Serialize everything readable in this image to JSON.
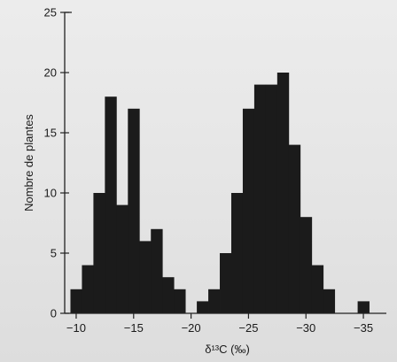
{
  "chart_data": {
    "type": "bar",
    "title": "",
    "xlabel": "δ¹³C (‰)",
    "ylabel": "Nombre de plantes",
    "x_reversed": true,
    "xlim": [
      -9,
      -37
    ],
    "ylim": [
      0,
      25
    ],
    "xticks": [
      {
        "value": -10,
        "label": "−10"
      },
      {
        "value": -15,
        "label": "−15"
      },
      {
        "value": -20,
        "label": "−20"
      },
      {
        "value": -25,
        "label": "−25"
      },
      {
        "value": -30,
        "label": "−30"
      },
      {
        "value": -35,
        "label": "−35"
      }
    ],
    "yticks": [
      {
        "value": 0,
        "label": "0"
      },
      {
        "value": 5,
        "label": "5"
      },
      {
        "value": 10,
        "label": "10"
      },
      {
        "value": 15,
        "label": "15"
      },
      {
        "value": 20,
        "label": "20"
      },
      {
        "value": 25,
        "label": "25"
      }
    ],
    "bin_width": 1,
    "bins": [
      {
        "x": -10,
        "count": 2
      },
      {
        "x": -11,
        "count": 4
      },
      {
        "x": -12,
        "count": 10
      },
      {
        "x": -13,
        "count": 18
      },
      {
        "x": -14,
        "count": 9
      },
      {
        "x": -15,
        "count": 17
      },
      {
        "x": -16,
        "count": 6
      },
      {
        "x": -17,
        "count": 7
      },
      {
        "x": -18,
        "count": 3
      },
      {
        "x": -19,
        "count": 2
      },
      {
        "x": -20,
        "count": 0
      },
      {
        "x": -21,
        "count": 1
      },
      {
        "x": -22,
        "count": 2
      },
      {
        "x": -23,
        "count": 5
      },
      {
        "x": -24,
        "count": 10
      },
      {
        "x": -25,
        "count": 17
      },
      {
        "x": -26,
        "count": 19
      },
      {
        "x": -27,
        "count": 19
      },
      {
        "x": -28,
        "count": 20
      },
      {
        "x": -29,
        "count": 14
      },
      {
        "x": -30,
        "count": 8
      },
      {
        "x": -31,
        "count": 4
      },
      {
        "x": -32,
        "count": 2
      },
      {
        "x": -33,
        "count": 0
      },
      {
        "x": -34,
        "count": 0
      },
      {
        "x": -35,
        "count": 1
      }
    ],
    "bar_color": "#1b1b1b",
    "grid": false
  }
}
